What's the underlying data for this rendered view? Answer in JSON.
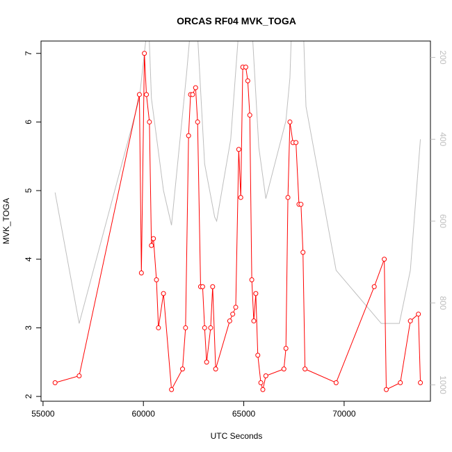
{
  "chart_data": {
    "type": "line",
    "title": "ORCAS RF04 MVK_TOGA",
    "xlabel": "UTC Seconds",
    "ylabel": "MVK_TOGA",
    "xlim": [
      54900,
      74300
    ],
    "ylim": [
      1.93,
      7.18
    ],
    "xticks": [
      55000,
      60000,
      65000,
      70000
    ],
    "yticks": [
      2,
      3,
      4,
      5,
      6,
      7
    ],
    "y2lim": [
      1040,
      160
    ],
    "y2ticks": [
      200,
      400,
      600,
      800,
      1000
    ],
    "grid": false,
    "legend": "none",
    "colors": {
      "series": "#ff0000",
      "secondary": "#bebebe"
    },
    "series": [
      {
        "marker": "open-circle",
        "x": [
          55600,
          56800,
          59800,
          59900,
          60050,
          60150,
          60300,
          60400,
          60500,
          60650,
          60750,
          61000,
          61400,
          61950,
          62100,
          62250,
          62350,
          62450,
          62600,
          62700,
          62850,
          62950,
          63050,
          63150,
          63350,
          63450,
          63600,
          64300,
          64450,
          64600,
          64750,
          64850,
          64950,
          65100,
          65200,
          65300,
          65400,
          65500,
          65600,
          65700,
          65850,
          65950,
          66100,
          67000,
          67100,
          67200,
          67300,
          67450,
          67600,
          67750,
          67850,
          67950,
          68050,
          69600,
          71500,
          72000,
          72100,
          72800,
          73300,
          73700,
          73800
        ],
        "y": [
          2.2,
          2.3,
          6.4,
          3.8,
          7.0,
          6.4,
          6.0,
          4.2,
          4.3,
          3.7,
          3.0,
          3.5,
          2.1,
          2.4,
          3.0,
          5.8,
          6.4,
          6.4,
          6.5,
          6.0,
          3.6,
          3.6,
          3.0,
          2.5,
          3.0,
          3.6,
          2.4,
          3.1,
          3.2,
          3.3,
          5.6,
          4.9,
          6.8,
          6.8,
          6.6,
          6.1,
          3.7,
          3.1,
          3.5,
          2.6,
          2.2,
          2.1,
          2.3,
          2.4,
          2.7,
          4.9,
          6.0,
          5.7,
          5.7,
          4.8,
          4.8,
          4.1,
          2.4,
          2.2,
          3.6,
          4.0,
          2.1,
          2.2,
          3.1,
          3.2,
          2.2
        ]
      },
      {
        "axis": "right",
        "x": [
          55600,
          56800,
          59800,
          60250,
          60400,
          61000,
          61400,
          62150,
          62400,
          62650,
          63050,
          63550,
          63650,
          64350,
          64800,
          65000,
          65200,
          65450,
          65750,
          66100,
          67100,
          67300,
          67400,
          67950,
          68100,
          69600,
          71850,
          72750,
          73300,
          73800
        ],
        "y": [
          530,
          850,
          300,
          100,
          300,
          525,
          610,
          240,
          100,
          100,
          460,
          590,
          600,
          400,
          100,
          100,
          100,
          160,
          420,
          545,
          355,
          250,
          100,
          100,
          320,
          720,
          850,
          850,
          720,
          400
        ]
      }
    ]
  }
}
